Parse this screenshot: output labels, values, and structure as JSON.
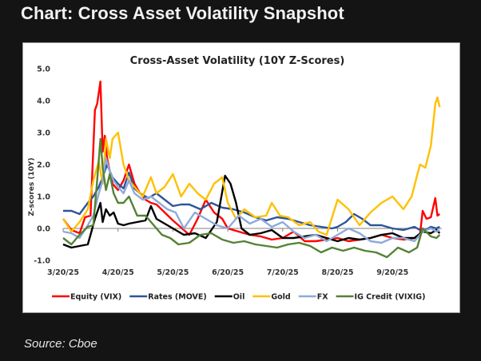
{
  "page": {
    "title": "Chart: Cross Asset Volatility Snapshot",
    "source": "Source: Cboe"
  },
  "chart_data": {
    "type": "line",
    "title": "Cross-Asset Volatility (10Y Z-Scores)",
    "xlabel": "",
    "ylabel": "Z-scores (10Y)",
    "ylim": [
      -1.0,
      5.0
    ],
    "yticks": [
      "5.0",
      "4.0",
      "3.0",
      "2.0",
      "1.0",
      "0.0",
      "-1.0"
    ],
    "ytick_values": [
      5,
      4,
      3,
      2,
      1,
      0,
      -1
    ],
    "xticks": [
      "3/20/25",
      "4/20/25",
      "5/20/25",
      "6/20/25",
      "7/20/25",
      "8/20/25",
      "9/20/25"
    ],
    "x_range_months": [
      0,
      6.9
    ],
    "grid": false,
    "legend_position": "bottom",
    "series": [
      {
        "name": "Equity (VIX)",
        "color": "#ff0000",
        "x": [
          0,
          0.15,
          0.3,
          0.4,
          0.5,
          0.58,
          0.62,
          0.68,
          0.72,
          0.76,
          0.8,
          0.85,
          0.9,
          1.0,
          1.1,
          1.2,
          1.3,
          1.4,
          1.5,
          1.6,
          1.7,
          1.85,
          2.0,
          2.1,
          2.2,
          2.3,
          2.45,
          2.6,
          2.75,
          2.9,
          3.0,
          3.2,
          3.4,
          3.6,
          3.8,
          4.0,
          4.2,
          4.4,
          4.6,
          4.8,
          5.0,
          5.2,
          5.4,
          5.6,
          5.8,
          6.0,
          6.2,
          6.4,
          6.5,
          6.55,
          6.62,
          6.7,
          6.78,
          6.82,
          6.86
        ],
        "y": [
          0.3,
          -0.05,
          -0.15,
          0.35,
          0.4,
          3.7,
          3.9,
          4.6,
          2.4,
          2.9,
          2.2,
          1.8,
          1.4,
          1.2,
          1.5,
          2.0,
          1.4,
          1.1,
          0.9,
          0.8,
          0.75,
          0.5,
          0.25,
          0.1,
          -0.05,
          -0.2,
          0.3,
          0.9,
          0.5,
          0.3,
          0.0,
          -0.1,
          -0.2,
          -0.25,
          -0.35,
          -0.3,
          -0.1,
          -0.4,
          -0.4,
          -0.35,
          -0.3,
          -0.4,
          -0.35,
          -0.3,
          -0.2,
          -0.3,
          -0.35,
          -0.3,
          -0.2,
          0.55,
          0.3,
          0.35,
          0.95,
          0.4,
          0.45
        ]
      },
      {
        "name": "Rates (MOVE)",
        "color": "#2e5597",
        "x": [
          0,
          0.15,
          0.3,
          0.45,
          0.55,
          0.65,
          0.72,
          0.8,
          0.9,
          1.0,
          1.1,
          1.2,
          1.3,
          1.4,
          1.55,
          1.7,
          1.85,
          2.0,
          2.15,
          2.3,
          2.5,
          2.7,
          2.9,
          3.1,
          3.3,
          3.5,
          3.7,
          3.9,
          4.1,
          4.3,
          4.5,
          4.7,
          4.9,
          5.0,
          5.15,
          5.3,
          5.45,
          5.6,
          5.8,
          6.0,
          6.2,
          6.4,
          6.55,
          6.7,
          6.8,
          6.86
        ],
        "y": [
          0.55,
          0.55,
          0.45,
          0.8,
          1.0,
          1.3,
          1.6,
          2.0,
          1.6,
          1.4,
          1.25,
          1.75,
          1.25,
          1.1,
          0.95,
          1.1,
          0.9,
          0.7,
          0.75,
          0.75,
          0.6,
          0.8,
          0.65,
          0.6,
          0.5,
          0.35,
          0.25,
          0.35,
          0.3,
          0.2,
          0.1,
          0.05,
          0.0,
          0.05,
          0.2,
          0.45,
          0.3,
          0.1,
          0.1,
          0.0,
          -0.05,
          0.05,
          -0.1,
          0.05,
          0.0,
          0.05
        ]
      },
      {
        "name": "Oil",
        "color": "#000000",
        "x": [
          0,
          0.15,
          0.3,
          0.45,
          0.5,
          0.58,
          0.68,
          0.72,
          0.78,
          0.85,
          0.92,
          1.0,
          1.1,
          1.2,
          1.35,
          1.5,
          1.6,
          1.7,
          1.85,
          2.0,
          2.2,
          2.4,
          2.6,
          2.8,
          2.95,
          3.05,
          3.15,
          3.25,
          3.4,
          3.6,
          3.8,
          4.0,
          4.2,
          4.4,
          4.6,
          4.8,
          5.0,
          5.2,
          5.4,
          5.6,
          5.8,
          6.0,
          6.2,
          6.4,
          6.55,
          6.7,
          6.8,
          6.86
        ],
        "y": [
          -0.5,
          -0.6,
          -0.55,
          -0.5,
          -0.2,
          0.3,
          0.8,
          0.2,
          0.6,
          0.4,
          0.5,
          0.15,
          0.1,
          0.15,
          0.2,
          0.25,
          0.7,
          0.3,
          0.15,
          0.0,
          -0.2,
          -0.15,
          -0.3,
          0.2,
          1.65,
          1.4,
          0.8,
          0.0,
          -0.2,
          -0.15,
          -0.05,
          -0.3,
          -0.3,
          -0.25,
          -0.2,
          -0.3,
          -0.4,
          -0.3,
          -0.35,
          -0.3,
          -0.2,
          -0.15,
          -0.3,
          -0.3,
          -0.1,
          -0.15,
          -0.05,
          -0.15
        ]
      },
      {
        "name": "Gold",
        "color": "#ffc000",
        "x": [
          0,
          0.15,
          0.3,
          0.45,
          0.55,
          0.65,
          0.72,
          0.78,
          0.85,
          0.9,
          1.0,
          1.1,
          1.2,
          1.3,
          1.45,
          1.6,
          1.7,
          1.85,
          2.0,
          2.15,
          2.3,
          2.45,
          2.6,
          2.75,
          2.9,
          3.0,
          3.15,
          3.3,
          3.5,
          3.7,
          3.8,
          3.95,
          4.1,
          4.3,
          4.5,
          4.65,
          4.8,
          5.0,
          5.2,
          5.4,
          5.6,
          5.8,
          6.0,
          6.2,
          6.35,
          6.5,
          6.6,
          6.7,
          6.78,
          6.82,
          6.86
        ],
        "y": [
          0.3,
          -0.1,
          0.2,
          0.6,
          1.5,
          2.1,
          1.4,
          2.8,
          2.2,
          2.8,
          3.0,
          2.0,
          1.5,
          1.3,
          1.0,
          1.6,
          1.1,
          1.3,
          1.7,
          1.0,
          1.4,
          1.1,
          0.9,
          1.4,
          1.6,
          0.8,
          0.3,
          0.6,
          0.35,
          0.4,
          0.8,
          0.4,
          0.35,
          0.1,
          0.2,
          -0.1,
          -0.2,
          0.9,
          0.6,
          0.1,
          0.5,
          0.8,
          1.0,
          0.6,
          1.0,
          2.0,
          1.9,
          2.6,
          3.9,
          4.1,
          3.8
        ]
      },
      {
        "name": "FX",
        "color": "#8eaadb",
        "x": [
          0,
          0.15,
          0.3,
          0.45,
          0.55,
          0.65,
          0.72,
          0.78,
          0.85,
          0.92,
          1.0,
          1.1,
          1.2,
          1.3,
          1.45,
          1.6,
          1.75,
          1.9,
          2.05,
          2.2,
          2.4,
          2.6,
          2.8,
          3.0,
          3.2,
          3.4,
          3.6,
          3.8,
          4.0,
          4.2,
          4.4,
          4.6,
          4.8,
          5.0,
          5.2,
          5.4,
          5.6,
          5.8,
          6.0,
          6.2,
          6.4,
          6.55,
          6.7,
          6.8,
          6.86
        ],
        "y": [
          -0.1,
          -0.15,
          -0.3,
          0.1,
          0.4,
          1.1,
          1.5,
          2.2,
          1.8,
          1.5,
          1.3,
          1.1,
          1.5,
          1.1,
          0.9,
          1.0,
          0.8,
          0.6,
          0.5,
          0.0,
          0.5,
          0.3,
          0.1,
          0.0,
          0.4,
          0.15,
          0.3,
          0.05,
          0.2,
          -0.1,
          -0.3,
          -0.2,
          -0.4,
          -0.2,
          0.0,
          -0.15,
          -0.4,
          -0.45,
          -0.3,
          -0.3,
          -0.4,
          -0.1,
          0.0,
          -0.1,
          -0.05
        ]
      },
      {
        "name": "IG Credit (VIXIG)",
        "color": "#548235",
        "x": [
          0,
          0.15,
          0.3,
          0.45,
          0.55,
          0.62,
          0.68,
          0.72,
          0.78,
          0.85,
          0.92,
          1.0,
          1.1,
          1.2,
          1.35,
          1.5,
          1.65,
          1.8,
          1.95,
          2.1,
          2.3,
          2.5,
          2.7,
          2.9,
          3.1,
          3.3,
          3.5,
          3.7,
          3.9,
          4.1,
          4.3,
          4.5,
          4.7,
          4.9,
          5.1,
          5.3,
          5.5,
          5.7,
          5.9,
          6.1,
          6.3,
          6.45,
          6.55,
          6.7,
          6.8,
          6.86
        ],
        "y": [
          -0.3,
          -0.5,
          -0.2,
          0.05,
          0.1,
          1.5,
          2.8,
          1.9,
          1.2,
          1.7,
          1.1,
          0.8,
          0.8,
          1.0,
          0.4,
          0.4,
          0.1,
          -0.2,
          -0.3,
          -0.5,
          -0.45,
          -0.2,
          -0.15,
          -0.35,
          -0.45,
          -0.4,
          -0.5,
          -0.55,
          -0.6,
          -0.5,
          -0.45,
          -0.55,
          -0.75,
          -0.6,
          -0.7,
          -0.6,
          -0.7,
          -0.75,
          -0.9,
          -0.6,
          -0.75,
          -0.6,
          0.0,
          -0.25,
          -0.3,
          -0.2
        ]
      }
    ]
  }
}
